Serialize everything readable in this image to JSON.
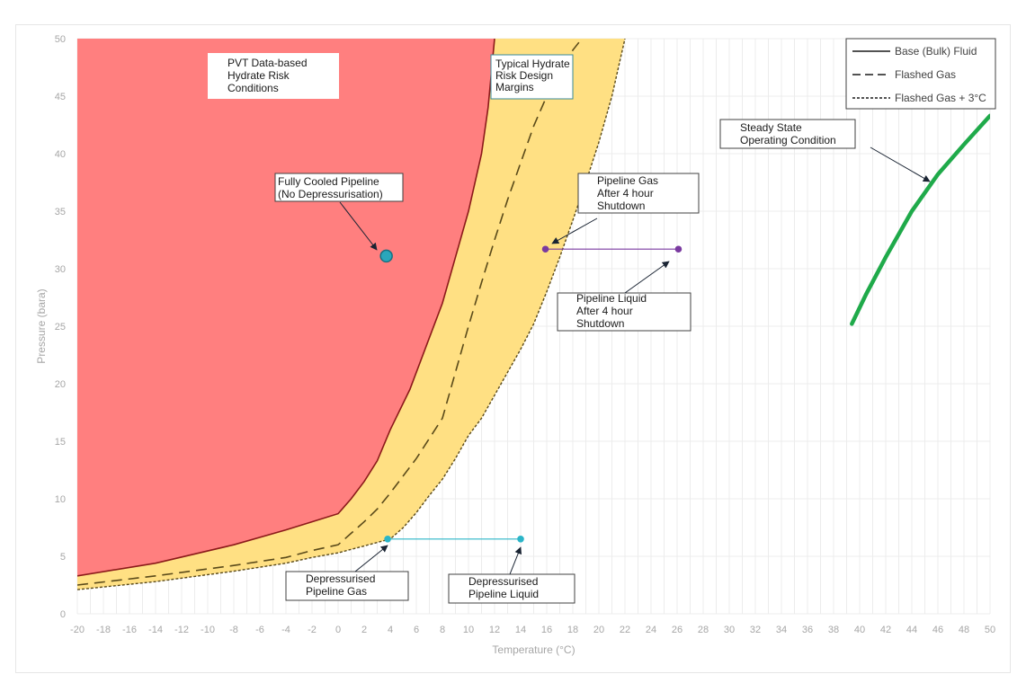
{
  "chart_data": {
    "type": "line",
    "xlabel": "Temperature (°C)",
    "ylabel": "Pressure (bara)",
    "xlim": [
      -20,
      50
    ],
    "ylim": [
      0,
      50
    ],
    "x_ticks": [
      -20,
      -18,
      -16,
      -14,
      -12,
      -10,
      -8,
      -6,
      -4,
      -2,
      0,
      2,
      4,
      6,
      8,
      10,
      12,
      14,
      16,
      18,
      20,
      22,
      24,
      26,
      28,
      30,
      32,
      34,
      36,
      38,
      40,
      42,
      44,
      46,
      48,
      50
    ],
    "y_ticks": [
      0,
      5,
      10,
      15,
      20,
      25,
      30,
      35,
      40,
      45,
      50
    ],
    "grid": true,
    "legend_position": "top-right",
    "legend": [
      {
        "label": "Base (Bulk) Fluid",
        "style": "solid"
      },
      {
        "label": "Flashed Gas",
        "style": "dashed"
      },
      {
        "label": "Flashed Gas + 3°C",
        "style": "dotted"
      }
    ],
    "colors": {
      "hydrate_region": "#ff7f7f",
      "margin_band": "#ffe083",
      "base_line": "#8b1a1a",
      "flashed_line": "#5a4a1a",
      "flashed_3c_line": "#5a4a1a",
      "steady_state": "#1faa4a",
      "depressurised": "#2bb5c8",
      "shutdown": "#7a3aa0",
      "fully_cooled_fill": "#2aa7bb",
      "fully_cooled_stroke": "#1a6f80"
    },
    "series": [
      {
        "name": "Base (Bulk) Fluid",
        "style": "solid",
        "x": [
          -20,
          -14,
          -8,
          -4,
          -2,
          0,
          1,
          2,
          3,
          4,
          5.5,
          7,
          8,
          9,
          10,
          11,
          11.5,
          12
        ],
        "y": [
          3.3,
          4.4,
          6.0,
          7.3,
          8.0,
          8.7,
          10.0,
          11.5,
          13.3,
          16.0,
          19.5,
          24.0,
          27.0,
          31.0,
          35.0,
          40.0,
          44.0,
          50.0
        ]
      },
      {
        "name": "Flashed Gas",
        "style": "dashed",
        "x": [
          -20,
          -14,
          -8,
          -4,
          -2,
          0,
          1,
          2,
          3,
          4,
          6,
          8,
          10,
          11,
          12,
          13,
          14,
          15,
          16,
          17,
          18,
          18.7
        ],
        "y": [
          2.5,
          3.3,
          4.2,
          4.9,
          5.5,
          6.0,
          7.0,
          8.0,
          9.1,
          10.5,
          13.5,
          17.0,
          25.0,
          28.8,
          32.5,
          36.0,
          39.2,
          42.4,
          45.0,
          47.0,
          49.0,
          50.0
        ]
      },
      {
        "name": "Flashed Gas + 3°C",
        "style": "dotted",
        "x": [
          -20,
          -14,
          -8,
          -4,
          -2,
          0,
          1,
          2,
          3,
          4,
          5,
          6,
          7,
          8,
          9,
          10,
          11,
          12,
          13,
          14,
          15,
          16,
          17,
          18,
          19,
          20,
          21,
          22
        ],
        "y": [
          2.1,
          2.8,
          3.7,
          4.4,
          4.9,
          5.3,
          5.6,
          5.9,
          6.2,
          6.5,
          7.5,
          8.8,
          10.3,
          11.7,
          13.5,
          15.5,
          17.0,
          19.0,
          21.0,
          23.0,
          25.2,
          28.0,
          31.0,
          34.2,
          37.5,
          41.0,
          45.0,
          50.0
        ]
      },
      {
        "name": "Steady State Operating Condition",
        "style": "solid",
        "x": [
          39.4,
          40.5,
          42.0,
          44.0,
          46.0,
          48.0,
          50.0
        ],
        "y": [
          25.2,
          27.8,
          31.0,
          35.0,
          38.2,
          40.8,
          43.3
        ]
      },
      {
        "name": "Depressurised Pipeline",
        "style": "solid",
        "x": [
          3.8,
          14.0
        ],
        "y": [
          6.5,
          6.5
        ]
      },
      {
        "name": "Pipeline after 4 hour Shutdown",
        "style": "solid",
        "x": [
          15.9,
          26.1
        ],
        "y": [
          31.7,
          31.7
        ]
      }
    ],
    "points": [
      {
        "name": "Fully Cooled Pipeline",
        "x": 3.7,
        "y": 31.1
      },
      {
        "name": "Depressurised Pipeline Gas",
        "x": 3.8,
        "y": 6.5
      },
      {
        "name": "Depressurised Pipeline Liquid",
        "x": 14.0,
        "y": 6.5
      },
      {
        "name": "Pipeline Gas After 4 hour Shutdown",
        "x": 15.9,
        "y": 31.7
      },
      {
        "name": "Pipeline Liquid After 4 hour Shutdown",
        "x": 26.1,
        "y": 31.7
      }
    ],
    "annotations": [
      {
        "id": "pvt",
        "lines": [
          "PVT Data-based",
          "Hydrate Risk",
          "Conditions"
        ]
      },
      {
        "id": "margins",
        "lines": [
          "Typical Hydrate",
          "Risk Design",
          "Margins"
        ]
      },
      {
        "id": "fully-cooled",
        "lines": [
          "Fully Cooled Pipeline",
          "(No Depressurisation)"
        ]
      },
      {
        "id": "steady-state",
        "lines": [
          "Steady State",
          "Operating Condition"
        ]
      },
      {
        "id": "shutdown-gas",
        "lines": [
          "Pipeline Gas",
          "After 4 hour",
          "Shutdown"
        ]
      },
      {
        "id": "shutdown-liquid",
        "lines": [
          "Pipeline Liquid",
          "After 4 hour",
          "Shutdown"
        ]
      },
      {
        "id": "depress-gas",
        "lines": [
          "Depressurised",
          "Pipeline Gas"
        ]
      },
      {
        "id": "depress-liquid",
        "lines": [
          "Depressurised",
          "Pipeline Liquid"
        ]
      }
    ]
  }
}
